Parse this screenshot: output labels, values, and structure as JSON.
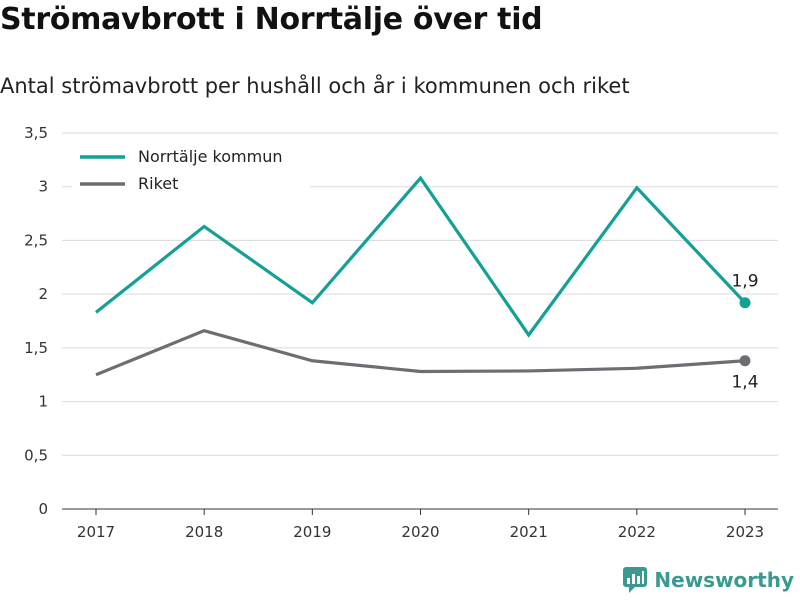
{
  "chart_data": {
    "type": "line",
    "title": "Strömavbrott i Norrtälje över tid",
    "subtitle": "Antal strömavbrott per hushåll och år i kommunen och riket",
    "x": [
      "2017",
      "2018",
      "2019",
      "2020",
      "2021",
      "2022",
      "2023"
    ],
    "ylim": [
      0,
      3.5
    ],
    "yticks": [
      0,
      0.5,
      1,
      1.5,
      2,
      2.5,
      3,
      3.5
    ],
    "ytick_labels": [
      "0",
      "0,5",
      "1",
      "1,5",
      "2",
      "2,5",
      "3",
      "3,5"
    ],
    "grid": true,
    "legend_position": "top-left",
    "series": [
      {
        "name": "Norrtälje kommun",
        "color": "#13a096",
        "values": [
          1.83,
          2.63,
          1.92,
          3.08,
          1.62,
          2.99,
          1.92
        ],
        "end_label": "1,9"
      },
      {
        "name": "Riket",
        "color": "#6e6d74",
        "values": [
          1.25,
          1.66,
          1.38,
          1.28,
          1.285,
          1.31,
          1.38
        ],
        "end_label": "1,4"
      }
    ]
  },
  "brand": {
    "name": "Newsworthy",
    "icon": "newsworthy-logo-icon",
    "color": "#3a9a8f"
  }
}
